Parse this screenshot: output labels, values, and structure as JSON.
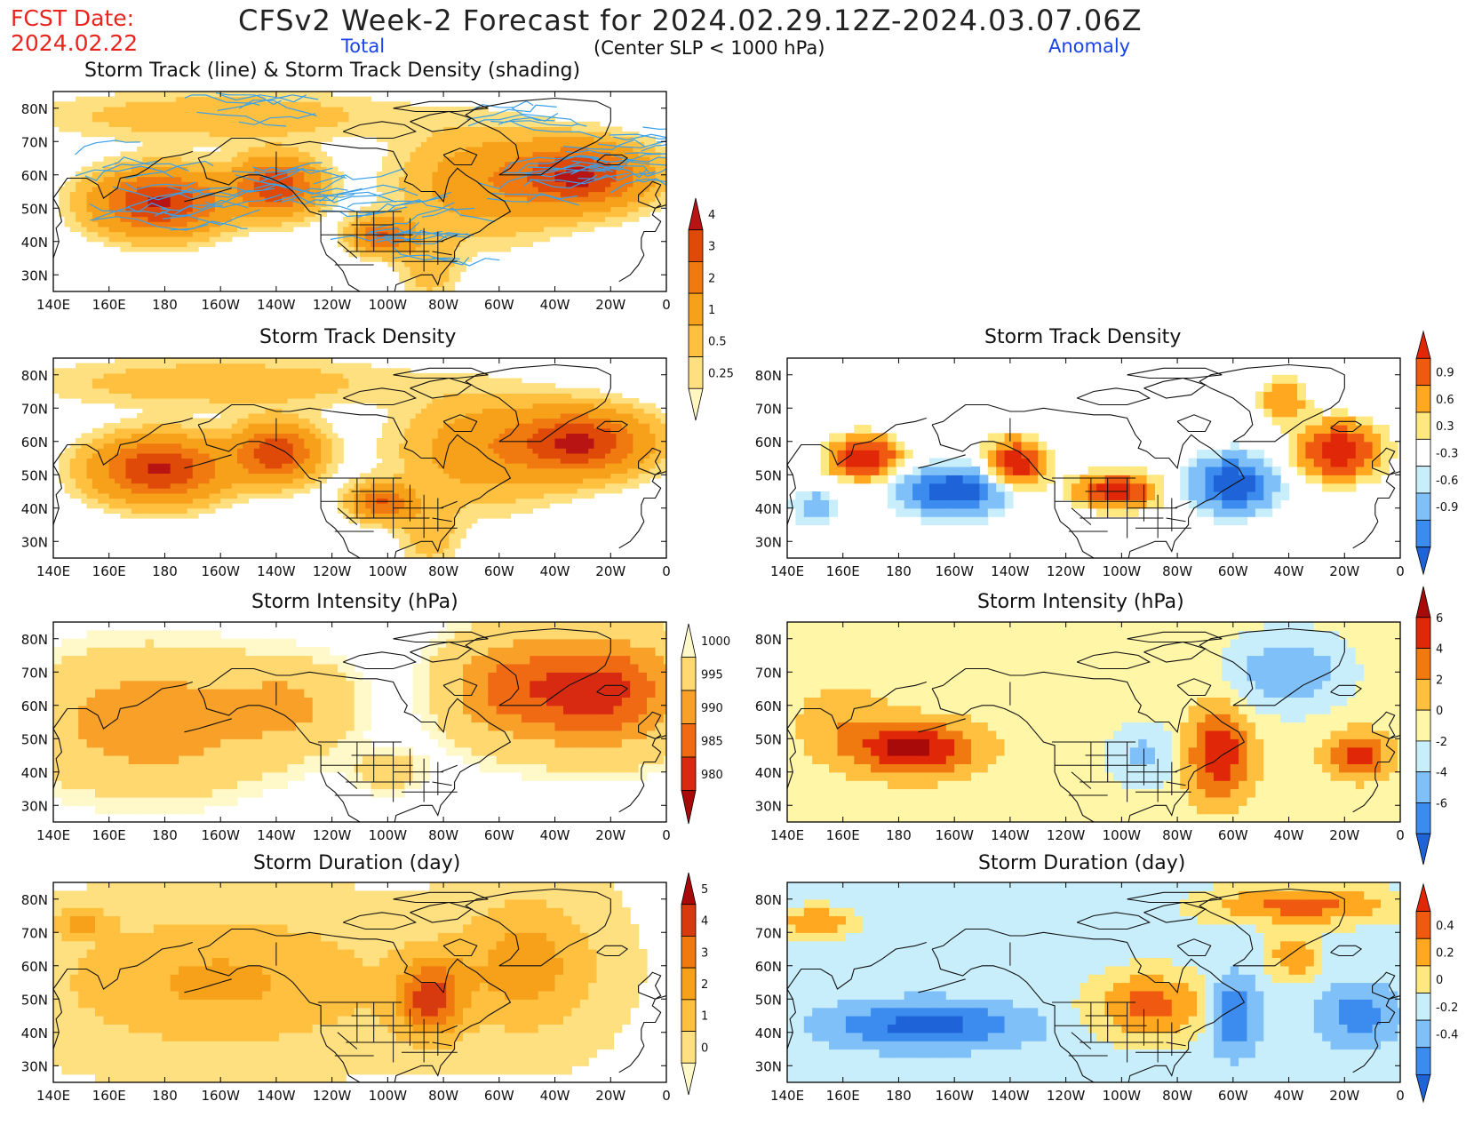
{
  "header": {
    "fcst_label": "FCST Date:",
    "fcst_date": "2024.02.22",
    "title": "CFSv2 Week-2 Forecast for 2024.02.29.12Z-2024.03.07.06Z",
    "subtitle": "(Center SLP < 1000 hPa)",
    "total_label": "Total",
    "anomaly_label": "Anomaly"
  },
  "axes": {
    "lat_labels": [
      "80N",
      "70N",
      "60N",
      "50N",
      "40N",
      "30N"
    ],
    "lon_labels": [
      "140E",
      "160E",
      "180",
      "160W",
      "140W",
      "120W",
      "100W",
      "80W",
      "60W",
      "40W",
      "20W",
      "0"
    ]
  },
  "panels": [
    {
      "id": "track-total",
      "title": "Storm Track (line) & Storm Track Density (shading)",
      "field": "density_total",
      "tracks": true
    },
    {
      "id": "density-total",
      "title": "Storm Track Density",
      "field": "density_total"
    },
    {
      "id": "density-anom",
      "title": "Storm Track Density",
      "field": "density_anom"
    },
    {
      "id": "intensity-total",
      "title": "Storm Intensity (hPa)",
      "field": "intensity_total"
    },
    {
      "id": "intensity-anom",
      "title": "Storm Intensity (hPa)",
      "field": "intensity_anom"
    },
    {
      "id": "duration-total",
      "title": "Storm Duration (day)",
      "field": "duration_total"
    },
    {
      "id": "duration-anom",
      "title": "Storm Duration (day)",
      "field": "duration_anom"
    }
  ],
  "colorbars": {
    "density_total": {
      "labels": [
        "0.25",
        "0.5",
        "1",
        "2",
        "3",
        "4"
      ],
      "colors": [
        "#fff6c0",
        "#ffe080",
        "#ffc040",
        "#f7a01a",
        "#f07a10",
        "#e04a08",
        "#b81414"
      ]
    },
    "density_anom": {
      "labels": [
        "-0.9",
        "-0.6",
        "-0.3",
        "0.3",
        "0.6",
        "0.9"
      ],
      "colors": [
        "#1e64d8",
        "#3c8cf0",
        "#80c0f8",
        "#c8eefc",
        "#ffffff",
        "#ffe880",
        "#ffa820",
        "#f05a10",
        "#e02808"
      ]
    },
    "intensity_total": {
      "labels": [
        "980",
        "985",
        "990",
        "995",
        "1000"
      ],
      "colors": [
        "#a80a0a",
        "#d82a10",
        "#f06a14",
        "#f8a028",
        "#ffd870",
        "#fff8c8"
      ]
    },
    "intensity_anom": {
      "labels": [
        "-6",
        "-4",
        "-2",
        "0",
        "2",
        "4",
        "6"
      ],
      "colors": [
        "#1e64d8",
        "#3c8cf0",
        "#80c0f8",
        "#c8eefc",
        "#fff6a8",
        "#ffc040",
        "#f07a10",
        "#e02808",
        "#a80a0a"
      ]
    },
    "duration_total": {
      "labels": [
        "0",
        "1",
        "2",
        "3",
        "4",
        "5"
      ],
      "colors": [
        "#fff8c8",
        "#ffe080",
        "#ffc040",
        "#f7a01a",
        "#f07a10",
        "#d83a10",
        "#a80a0a"
      ]
    },
    "duration_anom": {
      "labels": [
        "-0.4",
        "-0.2",
        "0",
        "0.2",
        "0.4"
      ],
      "colors": [
        "#1e64d8",
        "#3c8cf0",
        "#80c0f8",
        "#c8eefc",
        "#ffe880",
        "#ffa820",
        "#f05a10",
        "#e02808"
      ]
    }
  },
  "map_colors": {
    "land": "#111111",
    "frame": "#000000",
    "track": "#3aa0e8"
  }
}
